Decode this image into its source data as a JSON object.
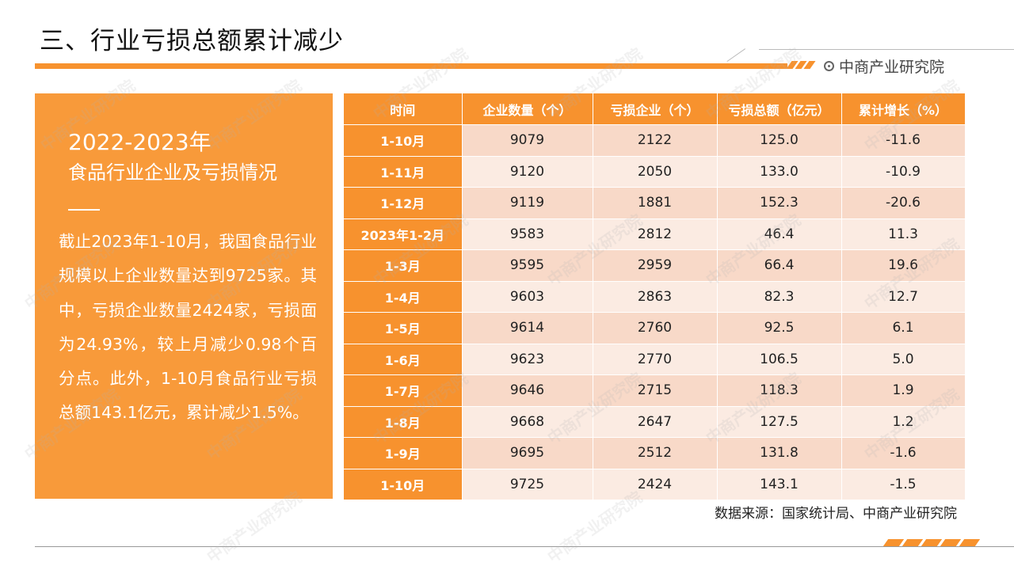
{
  "header": {
    "title": "三、行业亏损总额累计减少",
    "brand": "中商产业研究院"
  },
  "panel": {
    "year": "2022-2023年",
    "subtitle": "食品行业企业及亏损情况",
    "body": "截止2023年1-10月，我国食品行业规模以上企业数量达到9725家。其中，亏损企业数量2424家，亏损面为24.93%，较上月减少0.98个百分点。此外，1-10月食品行业亏损总额143.1亿元，累计减少1.5%。"
  },
  "table": {
    "headers": [
      "时间",
      "企业数量（个）",
      "亏损企业（个）",
      "亏损总额（亿元）",
      "累计增长（%）"
    ],
    "rows": [
      [
        "1-10月",
        "9079",
        "2122",
        "125.0",
        "-11.6"
      ],
      [
        "1-11月",
        "9120",
        "2050",
        "133.0",
        "-10.9"
      ],
      [
        "1-12月",
        "9119",
        "1881",
        "152.3",
        "-20.6"
      ],
      [
        "2023年1-2月",
        "9583",
        "2812",
        "46.4",
        "11.3"
      ],
      [
        "1-3月",
        "9595",
        "2959",
        "66.4",
        "19.6"
      ],
      [
        "1-4月",
        "9603",
        "2863",
        "82.3",
        "12.7"
      ],
      [
        "1-5月",
        "9614",
        "2760",
        "92.5",
        "6.1"
      ],
      [
        "1-6月",
        "9623",
        "2770",
        "106.5",
        "5.0"
      ],
      [
        "1-7月",
        "9646",
        "2715",
        "118.3",
        "1.9"
      ],
      [
        "1-8月",
        "9668",
        "2647",
        "127.5",
        "1.2"
      ],
      [
        "1-9月",
        "9695",
        "2512",
        "131.8",
        "-1.6"
      ],
      [
        "1-10月",
        "9725",
        "2424",
        "143.1",
        "-1.5"
      ]
    ]
  },
  "footer": {
    "source": "数据来源：国家统计局、中商产业研究院"
  },
  "colors": {
    "accent": "#f7922e",
    "panel": "#f89a3a",
    "row_dark": "#f8d9c8",
    "row_light": "#fbebe2"
  }
}
